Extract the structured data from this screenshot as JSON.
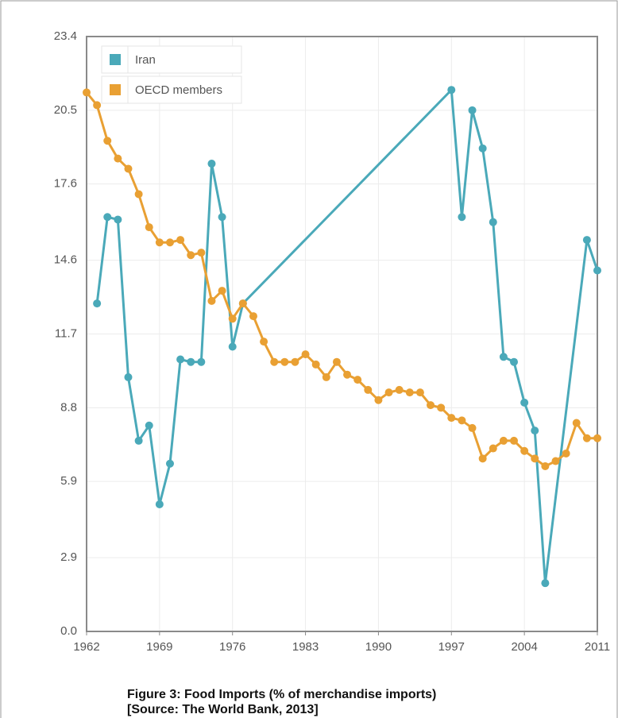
{
  "chart_data": {
    "type": "line",
    "xlim": [
      1962,
      2011
    ],
    "xticks": [
      1962,
      1969,
      1976,
      1983,
      1990,
      1997,
      2004,
      2011
    ],
    "ylim": [
      0,
      23.4
    ],
    "yticks": [
      {
        "value": 0,
        "label": "0.0"
      },
      2.9,
      5.9,
      8.8,
      11.7,
      14.6,
      17.6,
      20.5,
      23.4
    ],
    "grid": true,
    "legend": "top-left",
    "series": [
      {
        "name": "Iran",
        "color": "#4aa9b9",
        "x": [
          1963,
          1964,
          1965,
          1966,
          1967,
          1968,
          1969,
          1970,
          1971,
          1972,
          1973,
          1974,
          1975,
          1976,
          1977,
          1997,
          1998,
          1999,
          2000,
          2001,
          2002,
          2003,
          2004,
          2005,
          2006,
          2010,
          2011
        ],
        "values": [
          12.9,
          16.3,
          16.2,
          10.0,
          7.5,
          8.1,
          5.0,
          6.6,
          10.7,
          10.6,
          10.6,
          18.4,
          16.3,
          11.2,
          12.9,
          21.3,
          16.3,
          20.5,
          19.0,
          16.1,
          10.8,
          10.6,
          9.0,
          7.9,
          1.9,
          15.4,
          14.2
        ]
      },
      {
        "name": "OECD members",
        "color": "#e9a033",
        "x": [
          1962,
          1963,
          1964,
          1965,
          1966,
          1967,
          1968,
          1969,
          1970,
          1971,
          1972,
          1973,
          1974,
          1975,
          1976,
          1977,
          1978,
          1979,
          1980,
          1981,
          1982,
          1983,
          1984,
          1985,
          1986,
          1987,
          1988,
          1989,
          1990,
          1991,
          1992,
          1993,
          1994,
          1995,
          1996,
          1997,
          1998,
          1999,
          2000,
          2001,
          2002,
          2003,
          2004,
          2005,
          2006,
          2007,
          2008,
          2009,
          2010,
          2011
        ],
        "values": [
          21.2,
          20.7,
          19.3,
          18.6,
          18.2,
          17.2,
          15.9,
          15.3,
          15.3,
          15.4,
          14.8,
          14.9,
          13.0,
          13.4,
          12.3,
          12.9,
          12.4,
          11.4,
          10.6,
          10.6,
          10.6,
          10.9,
          10.5,
          10.0,
          10.6,
          10.1,
          9.9,
          9.5,
          9.1,
          9.4,
          9.5,
          9.4,
          9.4,
          8.9,
          8.8,
          8.4,
          8.3,
          8.0,
          6.8,
          7.2,
          7.5,
          7.5,
          7.1,
          6.8,
          6.5,
          6.7,
          7.0,
          8.2,
          7.6,
          7.6
        ]
      }
    ],
    "caption": [
      "Figure 3: Food Imports (% of merchandise imports)",
      "[Source: The World Bank, 2013]"
    ]
  }
}
